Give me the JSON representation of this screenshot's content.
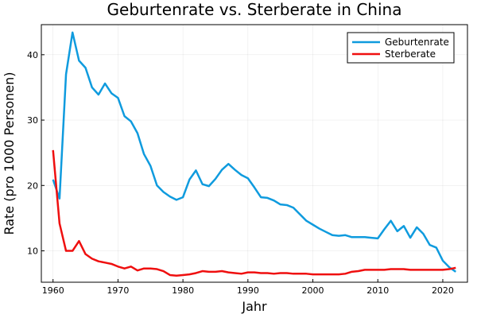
{
  "chart_data": {
    "type": "line",
    "title": "Geburtenrate vs. Sterberate in China",
    "xlabel": "Jahr",
    "ylabel": "Rate (pro 1000 Personen)",
    "x": [
      1960,
      1961,
      1962,
      1963,
      1964,
      1965,
      1966,
      1967,
      1968,
      1969,
      1970,
      1971,
      1972,
      1973,
      1974,
      1975,
      1976,
      1977,
      1978,
      1979,
      1980,
      1981,
      1982,
      1983,
      1984,
      1985,
      1986,
      1987,
      1988,
      1989,
      1990,
      1991,
      1992,
      1993,
      1994,
      1995,
      1996,
      1997,
      1998,
      1999,
      2000,
      2001,
      2002,
      2003,
      2004,
      2005,
      2006,
      2007,
      2008,
      2009,
      2010,
      2011,
      2012,
      2013,
      2014,
      2015,
      2016,
      2017,
      2018,
      2019,
      2020,
      2021,
      2022
    ],
    "series": [
      {
        "name": "Geburtenrate",
        "color": "#0f9bde",
        "values": [
          20.9,
          18.0,
          37.0,
          43.4,
          39.1,
          38.0,
          35.0,
          33.9,
          35.6,
          34.1,
          33.4,
          30.6,
          29.8,
          28.0,
          24.8,
          23.0,
          20.0,
          19.0,
          18.3,
          17.8,
          18.2,
          20.9,
          22.3,
          20.2,
          19.9,
          21.0,
          22.4,
          23.3,
          22.4,
          21.6,
          21.1,
          19.7,
          18.2,
          18.1,
          17.7,
          17.1,
          17.0,
          16.6,
          15.6,
          14.6,
          14.0,
          13.4,
          12.9,
          12.4,
          12.3,
          12.4,
          12.1,
          12.1,
          12.1,
          12.0,
          11.9,
          13.3,
          14.6,
          13.0,
          13.8,
          12.0,
          13.6,
          12.6,
          10.9,
          10.5,
          8.5,
          7.5,
          6.8
        ]
      },
      {
        "name": "Sterberate",
        "color": "#ef0f0f",
        "values": [
          25.4,
          14.2,
          10.0,
          10.0,
          11.5,
          9.5,
          8.8,
          8.4,
          8.2,
          8.0,
          7.6,
          7.3,
          7.6,
          7.0,
          7.3,
          7.3,
          7.2,
          6.9,
          6.3,
          6.2,
          6.3,
          6.4,
          6.6,
          6.9,
          6.8,
          6.8,
          6.9,
          6.7,
          6.6,
          6.5,
          6.7,
          6.7,
          6.6,
          6.6,
          6.5,
          6.6,
          6.6,
          6.5,
          6.5,
          6.5,
          6.4,
          6.4,
          6.4,
          6.4,
          6.4,
          6.5,
          6.8,
          6.9,
          7.1,
          7.1,
          7.1,
          7.1,
          7.2,
          7.2,
          7.2,
          7.1,
          7.1,
          7.1,
          7.1,
          7.1,
          7.1,
          7.2,
          7.4
        ]
      }
    ],
    "xticks": [
      1960,
      1970,
      1980,
      1990,
      2000,
      2010,
      2020
    ],
    "yticks": [
      10,
      20,
      30,
      40
    ],
    "xlim": [
      1958.2,
      2023.8
    ],
    "ylim": [
      5.2,
      44.6
    ],
    "grid": true,
    "legend_position": "top-right"
  }
}
